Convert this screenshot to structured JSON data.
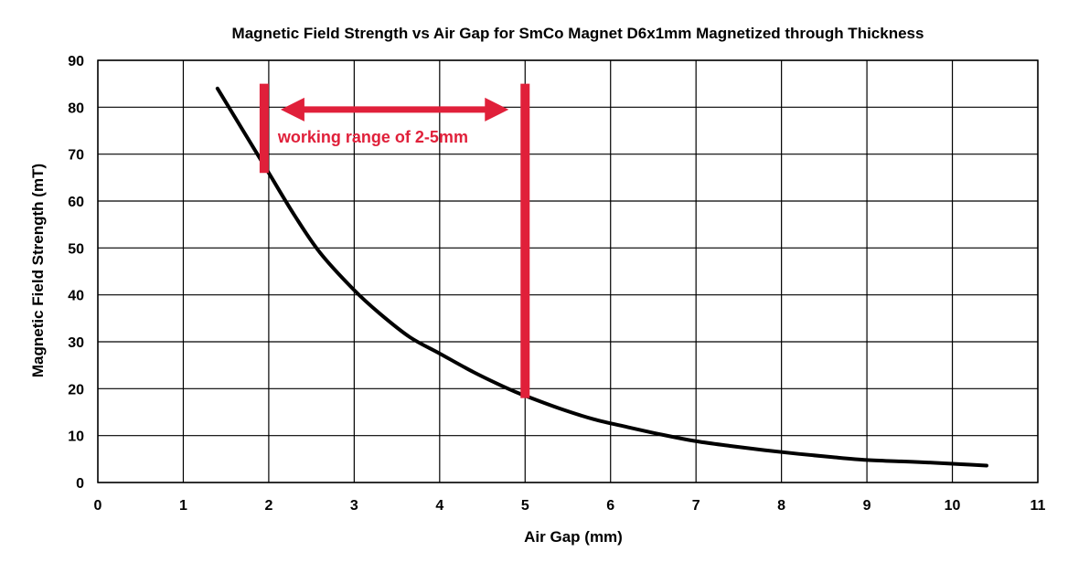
{
  "chart_data": {
    "type": "line",
    "title": "Magnetic Field Strength vs Air Gap for SmCo Magnet D6x1mm Magnetized through Thickness",
    "xlabel": "Air Gap (mm)",
    "ylabel": "Magnetic Field Strength (mT)",
    "xlim": [
      0,
      11
    ],
    "ylim": [
      0,
      90
    ],
    "x_ticks": [
      "0",
      "1",
      "2",
      "3",
      "4",
      "5",
      "6",
      "7",
      "8",
      "9",
      "10",
      "11"
    ],
    "y_ticks": [
      "0",
      "10",
      "20",
      "30",
      "40",
      "50",
      "60",
      "70",
      "80",
      "90"
    ],
    "grid": true,
    "line_color": "#000000",
    "series": [
      {
        "x": [
          1.4,
          1.7,
          2.0,
          2.3,
          2.6,
          3.0,
          3.3,
          3.65,
          4.0,
          4.4,
          4.8,
          5.0,
          5.4,
          5.8,
          6.2,
          6.6,
          7.0,
          7.4,
          7.8,
          8.2,
          8.6,
          9.0,
          9.4,
          9.8,
          10.1,
          10.4
        ],
        "y": [
          84,
          75,
          66,
          57,
          49,
          41,
          36,
          31,
          27.5,
          23.5,
          20,
          18.5,
          15.8,
          13.5,
          11.8,
          10.2,
          8.8,
          7.8,
          6.9,
          6.1,
          5.4,
          4.8,
          4.5,
          4.2,
          3.9,
          3.6
        ]
      }
    ],
    "annotation": {
      "text": "working range of 2-5mm",
      "color": "#e0203a",
      "range_x": [
        2,
        5
      ],
      "left_bar_y": [
        66,
        85
      ],
      "right_bar_y": [
        18,
        85
      ],
      "arrow_y": 79.5
    }
  }
}
